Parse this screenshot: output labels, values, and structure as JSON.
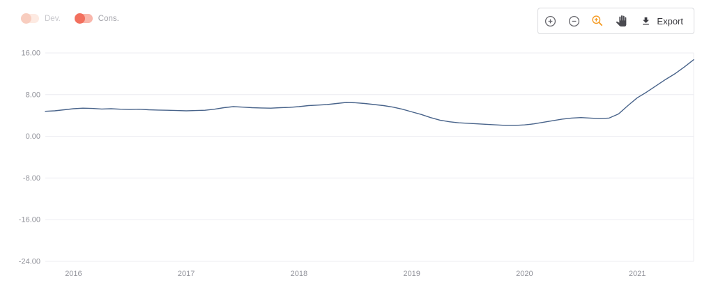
{
  "legend": {
    "toggles": [
      {
        "label": "Dev.",
        "state": "off",
        "knob_color": "#f8cdbf",
        "track_color": "#fdeae2",
        "label_color": "#c7c7cc"
      },
      {
        "label": "Cons.",
        "state": "on",
        "knob_color": "#f2705e",
        "track_color": "#f9b7ac",
        "label_color": "#a3a3aa"
      }
    ]
  },
  "toolbar": {
    "buttons": [
      {
        "name": "zoom-in",
        "icon": "circle-plus-icon"
      },
      {
        "name": "zoom-out",
        "icon": "circle-minus-icon"
      },
      {
        "name": "selection-zoom",
        "icon": "magnifier-plus-icon",
        "active": true,
        "active_color": "#f59b23"
      },
      {
        "name": "pan",
        "icon": "hand-icon"
      }
    ],
    "export_label": "Export"
  },
  "chart_data": {
    "type": "line",
    "title": "",
    "xlabel": "",
    "ylabel": "",
    "ylim": [
      -24,
      16
    ],
    "xlim": [
      2015.75,
      2021.5
    ],
    "grid": true,
    "grid_color": "#ececf1",
    "legend_position": "top-left",
    "yticks": [
      16,
      8,
      0,
      -8,
      -16,
      -24
    ],
    "ytick_labels": [
      "16.00",
      "8.00",
      "0.00",
      "-8.00",
      "-16.00",
      "-24.00"
    ],
    "xticks": [
      2016,
      2017,
      2018,
      2019,
      2020,
      2021
    ],
    "xtick_labels": [
      "2016",
      "2017",
      "2018",
      "2019",
      "2020",
      "2021"
    ],
    "months": [
      "2015-10",
      "2015-11",
      "2015-12",
      "2016-01",
      "2016-02",
      "2016-03",
      "2016-04",
      "2016-05",
      "2016-06",
      "2016-07",
      "2016-08",
      "2016-09",
      "2016-10",
      "2016-11",
      "2016-12",
      "2017-01",
      "2017-02",
      "2017-03",
      "2017-04",
      "2017-05",
      "2017-06",
      "2017-07",
      "2017-08",
      "2017-09",
      "2017-10",
      "2017-11",
      "2017-12",
      "2018-01",
      "2018-02",
      "2018-03",
      "2018-04",
      "2018-05",
      "2018-06",
      "2018-07",
      "2018-08",
      "2018-09",
      "2018-10",
      "2018-11",
      "2018-12",
      "2019-01",
      "2019-02",
      "2019-03",
      "2019-04",
      "2019-05",
      "2019-06",
      "2019-07",
      "2019-08",
      "2019-09",
      "2019-10",
      "2019-11",
      "2019-12",
      "2020-01",
      "2020-02",
      "2020-03",
      "2020-04",
      "2020-05",
      "2020-06",
      "2020-07",
      "2020-08",
      "2020-09",
      "2020-10",
      "2020-11",
      "2020-12",
      "2021-01",
      "2021-02",
      "2021-03",
      "2021-04",
      "2021-05",
      "2021-06",
      "2021-07"
    ],
    "series": [
      {
        "name": "Cons.",
        "color": "#48638a",
        "values": [
          4.8,
          4.9,
          5.1,
          5.3,
          5.4,
          5.35,
          5.25,
          5.3,
          5.2,
          5.15,
          5.2,
          5.1,
          5.05,
          5.0,
          4.95,
          4.9,
          4.95,
          5.0,
          5.2,
          5.5,
          5.7,
          5.6,
          5.5,
          5.45,
          5.4,
          5.5,
          5.55,
          5.7,
          5.9,
          6.0,
          6.1,
          6.3,
          6.5,
          6.45,
          6.3,
          6.1,
          5.9,
          5.6,
          5.2,
          4.7,
          4.2,
          3.6,
          3.1,
          2.8,
          2.6,
          2.5,
          2.4,
          2.3,
          2.2,
          2.1,
          2.1,
          2.2,
          2.4,
          2.7,
          3.0,
          3.3,
          3.5,
          3.6,
          3.5,
          3.4,
          3.5,
          4.3,
          5.9,
          7.4,
          8.5,
          9.7,
          10.9,
          12.0,
          13.3,
          14.7
        ]
      }
    ]
  }
}
